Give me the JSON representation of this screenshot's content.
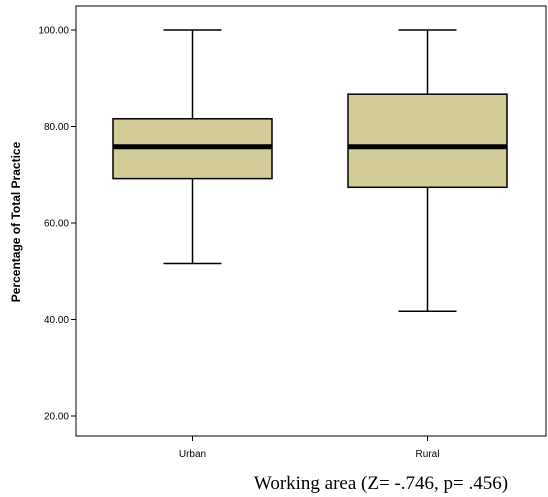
{
  "chart_data": {
    "type": "box",
    "ylabel": "Percentage of Total Practice",
    "xlabel": "Working area (Z= -.746, p= .456)",
    "ylim": [
      15,
      103
    ],
    "yticks": [
      20,
      40,
      60,
      80,
      100
    ],
    "ytick_labels": [
      "20.00",
      "40.00",
      "60.00",
      "80.00",
      "100.00"
    ],
    "categories": [
      "Urban",
      "Rural"
    ],
    "boxes": [
      {
        "name": "Urban",
        "min": 51.6,
        "q1": 69.2,
        "median": 75.8,
        "q3": 81.6,
        "max": 100.0
      },
      {
        "name": "Rural",
        "min": 41.7,
        "q1": 67.4,
        "median": 75.8,
        "q3": 86.7,
        "max": 100.0
      }
    ],
    "colors": {
      "box_fill": "#d4cc97",
      "stroke": "#000000",
      "background": "#ffffff"
    }
  }
}
